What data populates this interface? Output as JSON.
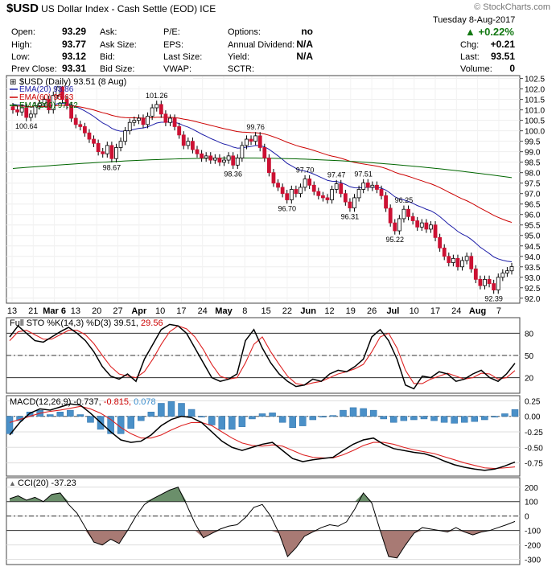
{
  "header": {
    "symbol": "$USD",
    "name": "US Dollar Index - Cash Settle (EOD)",
    "exchange": "ICE",
    "watermark": "© StockCharts.com",
    "date": "Tuesday  8-Aug-2017",
    "change_pct": "+0.22%",
    "fields": [
      {
        "label": "Open:",
        "value": "93.29"
      },
      {
        "label": "High:",
        "value": "93.77"
      },
      {
        "label": "Low:",
        "value": "93.12"
      },
      {
        "label": "Prev Close:",
        "value": "93.31"
      }
    ],
    "mid_labels": [
      "Ask:",
      "Ask Size:",
      "Bid:",
      "Bid Size:"
    ],
    "pe_labels": [
      "P/E:",
      "EPS:",
      "Last Size:",
      "VWAP:"
    ],
    "options_rows": [
      {
        "label": "Options:",
        "value": "no"
      },
      {
        "label": "Annual Dividend:",
        "value": "N/A"
      },
      {
        "label": "Yield:",
        "value": "N/A"
      },
      {
        "label": "SCTR:",
        "value": ""
      }
    ],
    "right_rows": [
      {
        "label": "Chg:",
        "value": "+0.21"
      },
      {
        "label": "Last:",
        "value": "93.51"
      },
      {
        "label": "Volume:",
        "value": "0"
      }
    ]
  },
  "panels": {
    "price_legend": "$USD (Daily) 93.51 (8 Aug)",
    "ema20": {
      "label": "EMA(20) 93.86",
      "color": "#1f1fa8"
    },
    "ema60": {
      "label": "EMA(60) 95.63",
      "color": "#cc0000"
    },
    "ema260": {
      "label": "EMA(260) 97.62",
      "color": "#006600"
    },
    "sto_title": "Full STO %K(14,3) %D(3) 39.51,",
    "sto_d": "29.56",
    "macd_title": "MACD(12,26,9) -0.737,",
    "macd_sig": "-0.815,",
    "macd_hist": "0.078",
    "cci_title": "CCI(20) -37.23"
  },
  "chart_data": [
    {
      "type": "candlestick",
      "title": "$USD (Daily) 93.51 (8 Aug)",
      "ylim": [
        91.8,
        102.6
      ],
      "yticks": [
        92.0,
        92.5,
        93.0,
        93.5,
        94.0,
        94.5,
        95.0,
        95.5,
        96.0,
        96.5,
        97.0,
        97.5,
        98.0,
        98.5,
        99.0,
        99.5,
        100.0,
        100.5,
        101.0,
        101.5,
        102.0,
        102.5
      ],
      "xticks": [
        "13",
        "21",
        "Mar 6",
        "13",
        "20",
        "27",
        "Apr",
        "10",
        "17",
        "24",
        "May",
        "8",
        "15",
        "22",
        "Jun",
        "12",
        "19",
        "26",
        "Jul",
        "10",
        "17",
        "24",
        "Aug",
        "7"
      ],
      "close": [
        101.0,
        100.9,
        101.1,
        100.64,
        100.8,
        101.2,
        101.3,
        101.5,
        101.0,
        101.7,
        102.1,
        101.5,
        101.2,
        100.6,
        100.3,
        100.2,
        99.9,
        99.6,
        99.4,
        99.0,
        98.9,
        99.3,
        98.67,
        99.2,
        99.5,
        100.0,
        100.4,
        100.5,
        100.6,
        100.3,
        100.7,
        101.1,
        101.26,
        100.8,
        100.4,
        100.6,
        100.2,
        99.8,
        99.3,
        99.5,
        99.1,
        98.9,
        98.7,
        98.8,
        98.6,
        98.7,
        98.5,
        98.6,
        98.8,
        98.36,
        98.7,
        99.3,
        99.6,
        99.5,
        99.76,
        99.2,
        98.7,
        98.0,
        97.5,
        97.3,
        97.0,
        96.7,
        97.2,
        97.0,
        97.3,
        97.7,
        97.4,
        97.1,
        96.9,
        96.8,
        96.7,
        97.2,
        97.47,
        97.0,
        96.6,
        96.31,
        96.8,
        97.2,
        97.51,
        97.3,
        97.4,
        97.2,
        96.9,
        96.3,
        95.6,
        95.22,
        95.8,
        96.25,
        95.9,
        95.7,
        95.4,
        95.6,
        95.3,
        95.5,
        94.9,
        94.4,
        94.0,
        93.7,
        93.9,
        93.5,
        93.8,
        94.0,
        93.4,
        92.9,
        92.6,
        92.9,
        92.7,
        92.39,
        93.0,
        93.2,
        93.31,
        93.51
      ],
      "annotations": [
        {
          "label": "100.64",
          "index": 3,
          "value": 100.64
        },
        {
          "label": "98.67",
          "index": 22,
          "value": 98.67
        },
        {
          "label": "101.26",
          "index": 32,
          "value": 101.26
        },
        {
          "label": "98.36",
          "index": 49,
          "value": 98.36
        },
        {
          "label": "99.76",
          "index": 54,
          "value": 99.76
        },
        {
          "label": "96.70",
          "index": 61,
          "value": 96.7
        },
        {
          "label": "97.70",
          "index": 65,
          "value": 97.7
        },
        {
          "label": "97.47",
          "index": 72,
          "value": 97.47
        },
        {
          "label": "96.31",
          "index": 75,
          "value": 96.31
        },
        {
          "label": "97.51",
          "index": 78,
          "value": 97.51
        },
        {
          "label": "95.22",
          "index": 85,
          "value": 95.22
        },
        {
          "label": "96.25",
          "index": 87,
          "value": 96.25
        },
        {
          "label": "92.39",
          "index": 107,
          "value": 92.39
        }
      ],
      "ema": [
        {
          "name": "EMA(20)",
          "start": 101.3,
          "end": 93.86
        },
        {
          "name": "EMA(60)",
          "start": 101.2,
          "end": 95.63
        },
        {
          "name": "EMA(260)",
          "start": 98.2,
          "end": 97.62
        }
      ]
    },
    {
      "type": "line",
      "title": "Full STO %K(14,3) %D(3)",
      "ylim": [
        0,
        100
      ],
      "yticks": [
        20,
        50,
        80
      ],
      "series": [
        {
          "name": "%K",
          "last": 39.51,
          "values": [
            75,
            90,
            80,
            70,
            68,
            75,
            82,
            88,
            80,
            70,
            55,
            35,
            22,
            18,
            25,
            15,
            45,
            65,
            85,
            92,
            90,
            80,
            60,
            40,
            20,
            15,
            18,
            25,
            70,
            85,
            60,
            40,
            25,
            15,
            8,
            10,
            18,
            15,
            25,
            30,
            28,
            35,
            45,
            75,
            85,
            70,
            45,
            10,
            5,
            22,
            20,
            28,
            25,
            15,
            18,
            25,
            30,
            20,
            15,
            25,
            39.51
          ]
        },
        {
          "name": "%D",
          "last": 29.56,
          "values": [
            70,
            82,
            84,
            78,
            72,
            72,
            78,
            84,
            84,
            78,
            66,
            50,
            35,
            25,
            22,
            20,
            28,
            45,
            65,
            82,
            90,
            86,
            75,
            58,
            38,
            22,
            18,
            20,
            40,
            65,
            75,
            55,
            38,
            22,
            12,
            10,
            13,
            15,
            20,
            25,
            28,
            32,
            38,
            55,
            75,
            80,
            60,
            30,
            12,
            12,
            18,
            22,
            26,
            22,
            18,
            20,
            26,
            25,
            18,
            20,
            29.56
          ]
        }
      ]
    },
    {
      "type": "line",
      "title": "MACD(12,26,9)",
      "ylim": [
        -0.95,
        0.32
      ],
      "yticks": [
        -0.75,
        -0.5,
        -0.25,
        0.0,
        0.25
      ],
      "series": [
        {
          "name": "MACD",
          "last": -0.737,
          "values": [
            -0.3,
            -0.1,
            0.05,
            0.12,
            0.1,
            0.15,
            0.2,
            0.18,
            0.05,
            -0.1,
            -0.25,
            -0.38,
            -0.42,
            -0.4,
            -0.3,
            -0.15,
            -0.05,
            0.0,
            -0.02,
            -0.1,
            -0.25,
            -0.4,
            -0.5,
            -0.55,
            -0.5,
            -0.45,
            -0.42,
            -0.55,
            -0.68,
            -0.73,
            -0.7,
            -0.68,
            -0.66,
            -0.55,
            -0.45,
            -0.38,
            -0.35,
            -0.45,
            -0.52,
            -0.55,
            -0.58,
            -0.6,
            -0.65,
            -0.72,
            -0.78,
            -0.82,
            -0.85,
            -0.87,
            -0.85,
            -0.8,
            -0.737
          ]
        },
        {
          "name": "Signal",
          "last": -0.815,
          "values": [
            -0.1,
            -0.05,
            0.0,
            0.05,
            0.08,
            0.1,
            0.13,
            0.16,
            0.12,
            0.05,
            -0.05,
            -0.18,
            -0.28,
            -0.35,
            -0.35,
            -0.3,
            -0.22,
            -0.15,
            -0.1,
            -0.1,
            -0.15,
            -0.25,
            -0.35,
            -0.43,
            -0.47,
            -0.48,
            -0.46,
            -0.48,
            -0.55,
            -0.62,
            -0.66,
            -0.67,
            -0.67,
            -0.62,
            -0.55,
            -0.47,
            -0.42,
            -0.42,
            -0.45,
            -0.5,
            -0.54,
            -0.57,
            -0.6,
            -0.65,
            -0.7,
            -0.75,
            -0.79,
            -0.83,
            -0.84,
            -0.83,
            -0.815
          ]
        },
        {
          "name": "Histogram",
          "last": 0.078
        }
      ]
    },
    {
      "type": "area",
      "title": "CCI(20)",
      "ylim": [
        -330,
        260
      ],
      "yticks": [
        -300,
        -200,
        -100,
        0,
        100,
        200
      ],
      "series": [
        {
          "name": "CCI(20)",
          "last": -37.23,
          "values": [
            120,
            140,
            110,
            130,
            100,
            150,
            160,
            80,
            20,
            -80,
            -180,
            -200,
            -160,
            -190,
            -100,
            0,
            80,
            120,
            150,
            180,
            200,
            80,
            -50,
            -150,
            -120,
            -90,
            -70,
            -60,
            -10,
            60,
            80,
            0,
            -120,
            -280,
            -220,
            -140,
            -110,
            -80,
            -60,
            -70,
            -40,
            50,
            160,
            90,
            -100,
            -280,
            -290,
            -200,
            -120,
            -80,
            -90,
            -100,
            -110,
            -80,
            -110,
            -130,
            -110,
            -100,
            -80,
            -60,
            -37.23
          ]
        }
      ]
    }
  ]
}
